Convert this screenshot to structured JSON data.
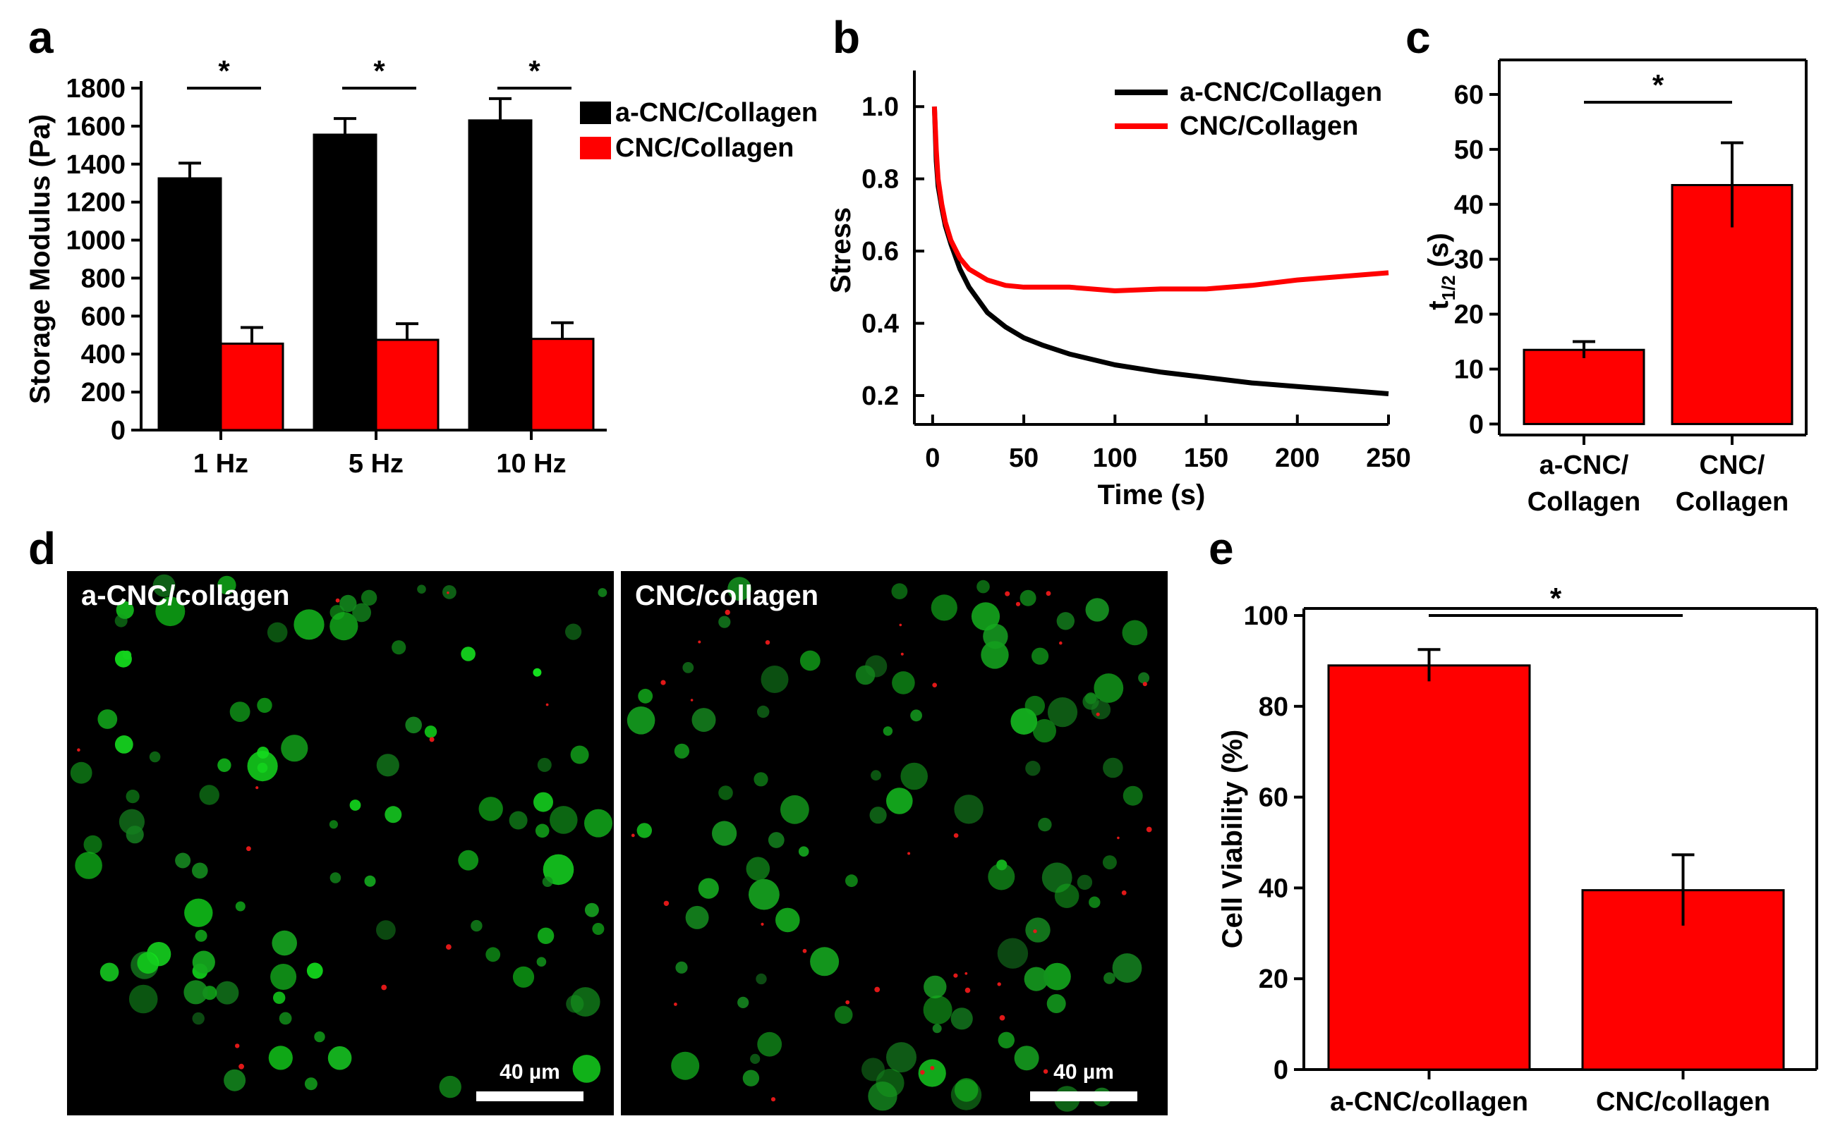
{
  "chart_data": [
    {
      "panel": "a",
      "type": "bar",
      "categories": [
        "1 Hz",
        "5 Hz",
        "10 Hz"
      ],
      "series": [
        {
          "name": "a-CNC/Collagen",
          "color": "#000000",
          "values": [
            1325,
            1555,
            1630
          ],
          "errors": [
            80,
            85,
            115
          ]
        },
        {
          "name": "CNC/Collagen",
          "color": "#ff0000",
          "values": [
            455,
            475,
            480
          ],
          "errors": [
            85,
            85,
            85
          ]
        }
      ],
      "ylabel": "Storage Modulus (Pa)",
      "xlabel": "",
      "ylim": [
        0,
        1800
      ],
      "yticks": [
        0,
        200,
        400,
        600,
        800,
        1000,
        1200,
        1400,
        1600,
        1800
      ],
      "significance": [
        "*",
        "*",
        "*"
      ],
      "legend_position": "top-right"
    },
    {
      "panel": "b",
      "type": "line",
      "xlabel": "Time (s)",
      "ylabel": "Stress",
      "xlim": [
        -10,
        250
      ],
      "ylim": [
        0.12,
        1.1
      ],
      "xticks": [
        0,
        50,
        100,
        150,
        200,
        250
      ],
      "yticks": [
        "0.2",
        "0.4",
        "0.6",
        "0.8",
        "1.0"
      ],
      "series": [
        {
          "name": "a-CNC/Collagen",
          "color": "#000000",
          "x": [
            1,
            2,
            3,
            5,
            7,
            10,
            15,
            20,
            30,
            40,
            50,
            60,
            75,
            100,
            125,
            150,
            175,
            200,
            225,
            250
          ],
          "y": [
            1.0,
            0.85,
            0.78,
            0.72,
            0.67,
            0.62,
            0.55,
            0.5,
            0.43,
            0.39,
            0.36,
            0.34,
            0.315,
            0.285,
            0.265,
            0.25,
            0.235,
            0.225,
            0.215,
            0.205
          ]
        },
        {
          "name": "CNC/Collagen",
          "color": "#ff0000",
          "x": [
            1,
            2,
            3,
            5,
            7,
            10,
            15,
            20,
            30,
            40,
            50,
            60,
            75,
            100,
            125,
            150,
            175,
            200,
            225,
            250
          ],
          "y": [
            1.0,
            0.88,
            0.8,
            0.73,
            0.68,
            0.63,
            0.58,
            0.55,
            0.52,
            0.505,
            0.5,
            0.5,
            0.5,
            0.49,
            0.495,
            0.495,
            0.505,
            0.52,
            0.53,
            0.54
          ]
        }
      ],
      "legend_position": "top-right"
    },
    {
      "panel": "c",
      "type": "bar",
      "categories": [
        "a-CNC/\nCollagen",
        "CNC/\nCollagen"
      ],
      "values": [
        13.5,
        43.5
      ],
      "errors": [
        1.5,
        7.7
      ],
      "color": "#ff0000",
      "ylabel": "t1/2 (s)",
      "ylim": [
        -2,
        65
      ],
      "yticks": [
        0,
        10,
        20,
        30,
        40,
        50,
        60
      ],
      "significance": "*"
    },
    {
      "panel": "e",
      "type": "bar",
      "categories": [
        "a-CNC/collagen",
        "CNC/collagen"
      ],
      "values": [
        89,
        39.5
      ],
      "errors": [
        3.5,
        7.8
      ],
      "color": "#ff0000",
      "ylabel": "Cell Viability (%)",
      "ylim": [
        0,
        100
      ],
      "yticks": [
        0,
        20,
        40,
        60,
        80,
        100
      ],
      "significance": "*"
    }
  ],
  "images": {
    "panel": "d",
    "left_label": "a-CNC/collagen",
    "right_label": "CNC/collagen",
    "scale_bar": "40 µm"
  },
  "panel_labels": [
    "a",
    "b",
    "c",
    "d",
    "e"
  ]
}
